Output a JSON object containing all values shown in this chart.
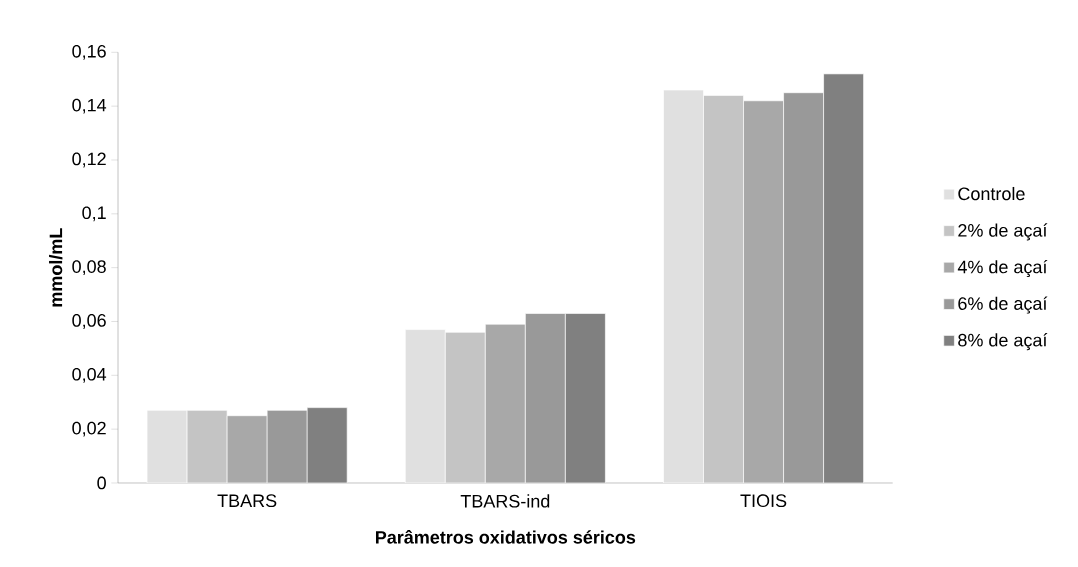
{
  "chart_data": {
    "type": "bar",
    "xlabel": "Parâmetros oxidativos séricos",
    "ylabel": "mmol/mL",
    "categories": [
      "TBARS",
      "TBARS-ind",
      "TIOIS"
    ],
    "series": [
      {
        "name": "Controle",
        "color": "#e0e0e0",
        "values": [
          0.027,
          0.057,
          0.146
        ]
      },
      {
        "name": "2% de açaí",
        "color": "#c4c4c4",
        "values": [
          0.027,
          0.056,
          0.144
        ]
      },
      {
        "name": "4% de açaí",
        "color": "#a8a8a8",
        "values": [
          0.025,
          0.059,
          0.142
        ]
      },
      {
        "name": "6% de açaí",
        "color": "#999999",
        "values": [
          0.027,
          0.063,
          0.145
        ]
      },
      {
        "name": "8% de açaí",
        "color": "#808080",
        "values": [
          0.028,
          0.063,
          0.152
        ]
      }
    ],
    "ylim": [
      0,
      0.16
    ],
    "yticks": [
      0,
      {
        "value": 0.02,
        "label": "0,02"
      },
      {
        "value": 0.04,
        "label": "0,04"
      },
      {
        "value": 0.06,
        "label": "0,06"
      },
      {
        "value": 0.08,
        "label": "0,08"
      },
      {
        "value": 0.1,
        "label": "0,1"
      },
      {
        "value": 0.12,
        "label": "0,12"
      },
      {
        "value": 0.14,
        "label": "0,14"
      },
      {
        "value": 0.16,
        "label": "0,16"
      }
    ],
    "legend": "right"
  }
}
